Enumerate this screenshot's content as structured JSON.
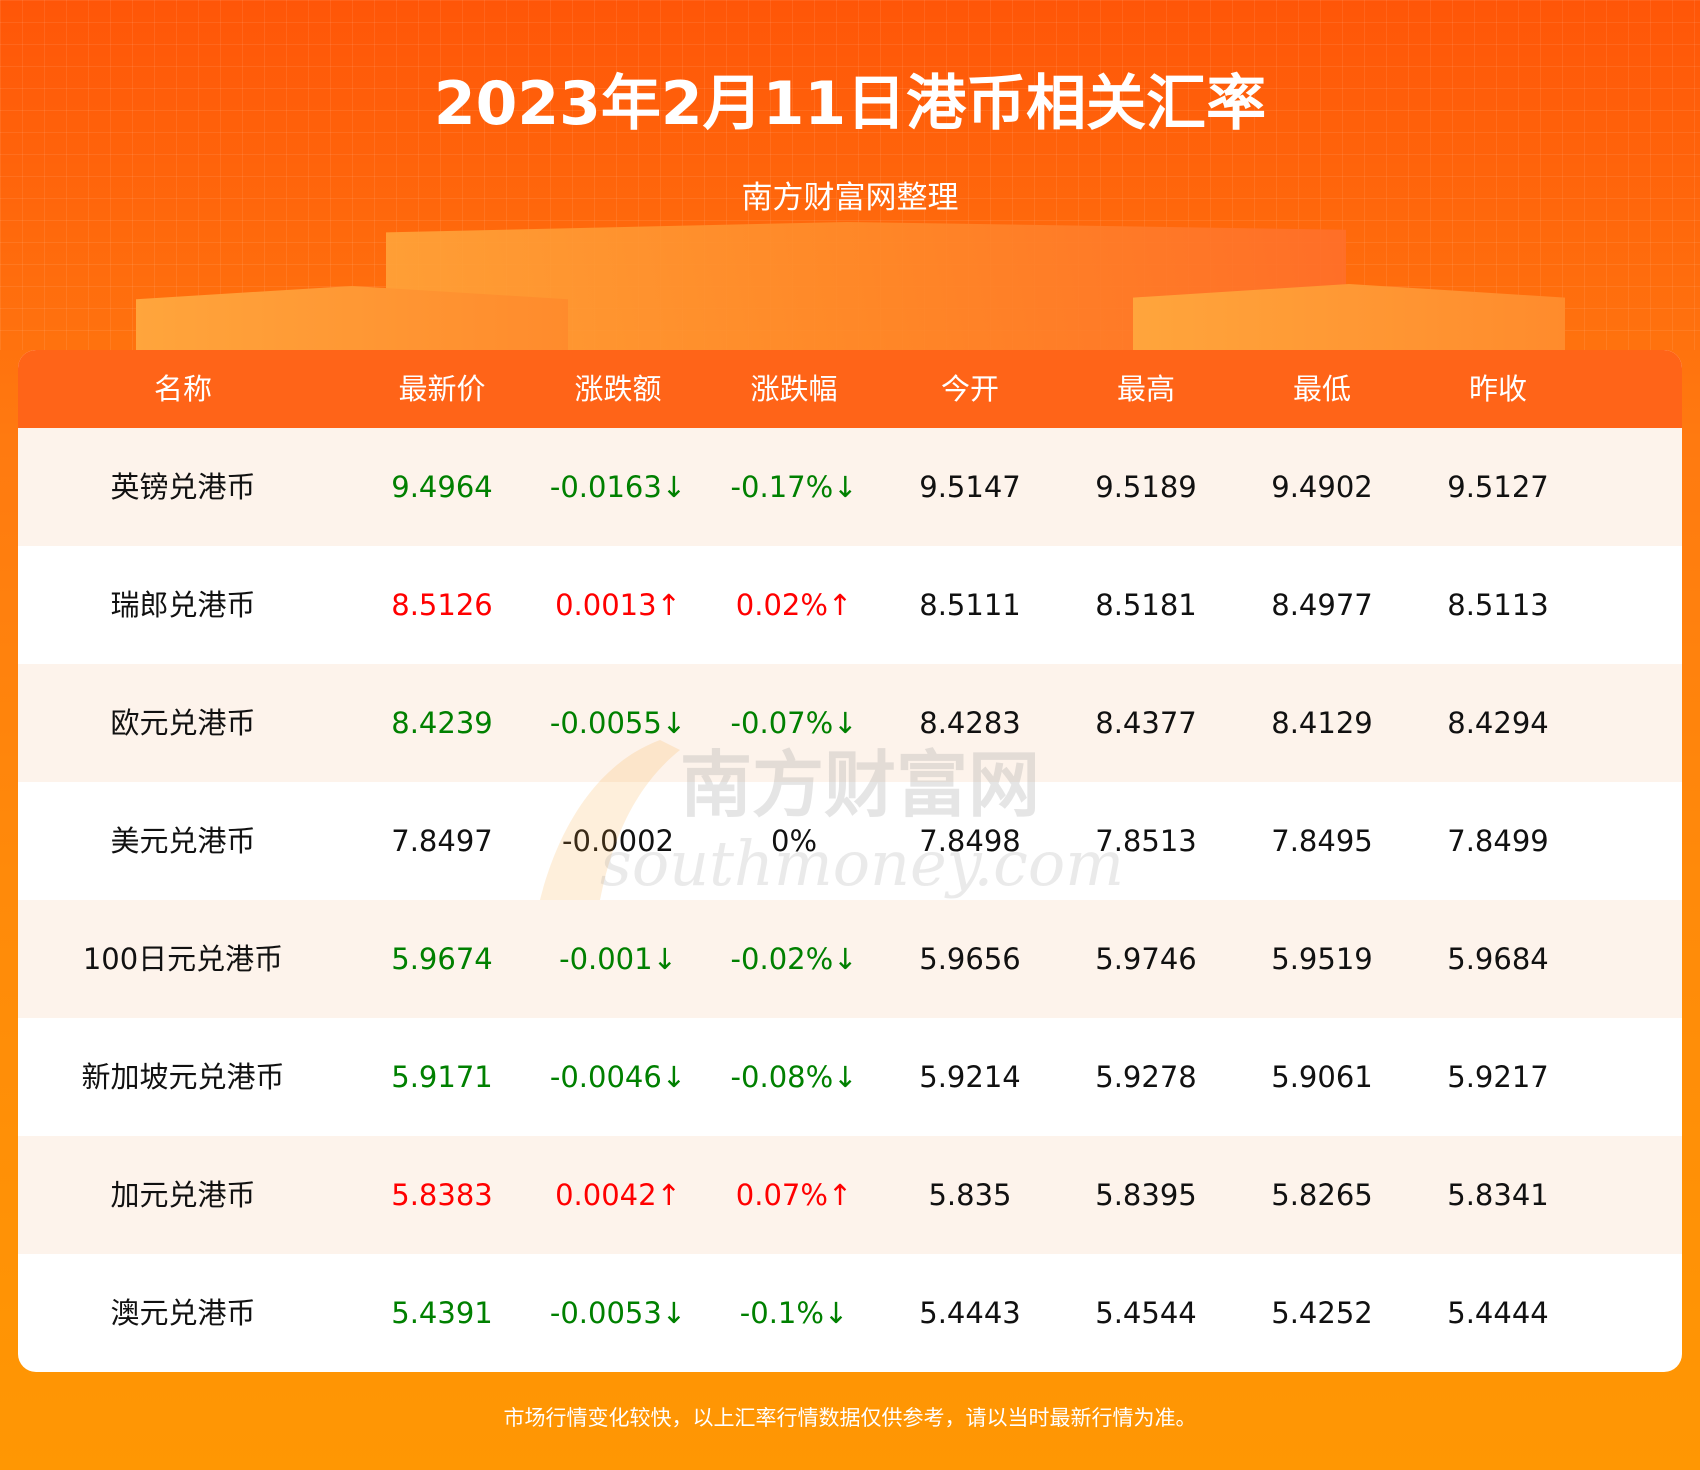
{
  "header": {
    "title": "2023年2月11日港币相关汇率",
    "subtitle": "南方财富网整理"
  },
  "table": {
    "columns": [
      "名称",
      "最新价",
      "涨跌额",
      "涨跌幅",
      "今开",
      "最高",
      "最低",
      "昨收"
    ],
    "rows": [
      {
        "name": "英镑兑港币",
        "latest": "9.4964",
        "change": "-0.0163↓",
        "pct": "-0.17%↓",
        "open": "9.5147",
        "high": "9.5189",
        "low": "9.4902",
        "prev": "9.5127",
        "trend": "down"
      },
      {
        "name": "瑞郎兑港币",
        "latest": "8.5126",
        "change": "0.0013↑",
        "pct": "0.02%↑",
        "open": "8.5111",
        "high": "8.5181",
        "low": "8.4977",
        "prev": "8.5113",
        "trend": "up"
      },
      {
        "name": "欧元兑港币",
        "latest": "8.4239",
        "change": "-0.0055↓",
        "pct": "-0.07%↓",
        "open": "8.4283",
        "high": "8.4377",
        "low": "8.4129",
        "prev": "8.4294",
        "trend": "down"
      },
      {
        "name": "美元兑港币",
        "latest": "7.8497",
        "change": "-0.0002",
        "pct": "0%",
        "open": "7.8498",
        "high": "7.8513",
        "low": "7.8495",
        "prev": "7.8499",
        "trend": "flat"
      },
      {
        "name": "100日元兑港币",
        "latest": "5.9674",
        "change": "-0.001↓",
        "pct": "-0.02%↓",
        "open": "5.9656",
        "high": "5.9746",
        "low": "5.9519",
        "prev": "5.9684",
        "trend": "down"
      },
      {
        "name": "新加坡元兑港币",
        "latest": "5.9171",
        "change": "-0.0046↓",
        "pct": "-0.08%↓",
        "open": "5.9214",
        "high": "5.9278",
        "low": "5.9061",
        "prev": "5.9217",
        "trend": "down"
      },
      {
        "name": "加元兑港币",
        "latest": "5.8383",
        "change": "0.0042↑",
        "pct": "0.07%↑",
        "open": "5.835",
        "high": "5.8395",
        "low": "5.8265",
        "prev": "5.8341",
        "trend": "up"
      },
      {
        "name": "澳元兑港币",
        "latest": "5.4391",
        "change": "-0.0053↓",
        "pct": "-0.1%↓",
        "open": "5.4443",
        "high": "5.4544",
        "low": "5.4252",
        "prev": "5.4444",
        "trend": "down"
      }
    ]
  },
  "watermark": {
    "cn": "南方财富网",
    "en": "southmoney.com"
  },
  "footer": {
    "note": "市场行情变化较快，以上汇率行情数据仅供参考，请以当时最新行情为准。"
  },
  "colors": {
    "up": "#ff0000",
    "down": "#008000",
    "header": "#ff6418",
    "alt_row": "#fdf3eb"
  }
}
